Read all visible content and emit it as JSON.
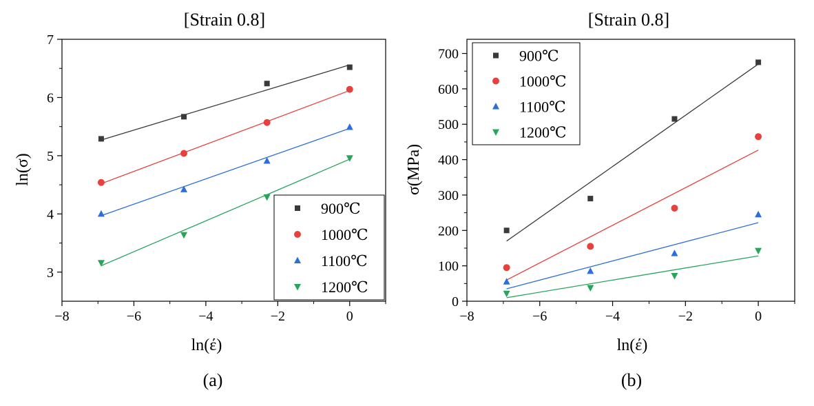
{
  "chart_data": [
    {
      "id": "a",
      "type": "scatter",
      "title": "[Strain 0.8]",
      "caption": "(a)",
      "xlabel": "ln(έ)",
      "ylabel": "ln(σ)",
      "xlim": [
        -8,
        1
      ],
      "ylim": [
        2.5,
        7
      ],
      "xticks": [
        -8,
        -6,
        -4,
        -2,
        0
      ],
      "yticks": [
        3,
        4,
        5,
        6,
        7
      ],
      "xtick_labels": [
        "−8",
        "−6",
        "−4",
        "−2",
        "0"
      ],
      "ytick_labels": [
        "3",
        "4",
        "5",
        "6",
        "7"
      ],
      "legend_position": "bottom-right",
      "x": [
        -6.91,
        -4.61,
        -2.3,
        0
      ],
      "series": [
        {
          "name": "900℃",
          "color": "#3a3a3a",
          "marker": "square",
          "values": [
            5.29,
            5.67,
            6.24,
            6.52
          ],
          "fit": [
            5.27,
            6.56
          ]
        },
        {
          "name": "1000℃",
          "color": "#e8403c",
          "marker": "circle",
          "values": [
            4.54,
            5.04,
            5.57,
            6.14
          ],
          "fit": [
            4.52,
            6.12
          ]
        },
        {
          "name": "1100℃",
          "color": "#2b6fdc",
          "marker": "triangle-up",
          "values": [
            4.0,
            4.42,
            4.91,
            5.49
          ],
          "fit": [
            3.97,
            5.47
          ]
        },
        {
          "name": "1200℃",
          "color": "#27a65a",
          "marker": "triangle-down",
          "values": [
            3.16,
            3.64,
            4.29,
            4.96
          ],
          "fit": [
            3.11,
            4.94
          ]
        }
      ]
    },
    {
      "id": "b",
      "type": "scatter",
      "title": "[Strain 0.8]",
      "caption": "(b)",
      "xlabel": "ln(έ)",
      "ylabel": "σ(MPa)",
      "xlim": [
        -8,
        1
      ],
      "ylim": [
        0,
        740
      ],
      "xticks": [
        -8,
        -6,
        -4,
        -2,
        0
      ],
      "yticks": [
        0,
        100,
        200,
        300,
        400,
        500,
        600,
        700
      ],
      "xtick_labels": [
        "−8",
        "−6",
        "−4",
        "−2",
        "0"
      ],
      "ytick_labels": [
        "0",
        "100",
        "200",
        "300",
        "400",
        "500",
        "600",
        "700"
      ],
      "legend_position": "top-left",
      "x": [
        -6.91,
        -4.61,
        -2.3,
        0
      ],
      "series": [
        {
          "name": "900℃",
          "color": "#3a3a3a",
          "marker": "square",
          "values": [
            200,
            290,
            515,
            675
          ],
          "fit": [
            170,
            670
          ]
        },
        {
          "name": "1000℃",
          "color": "#e8403c",
          "marker": "circle",
          "values": [
            95,
            155,
            263,
            465
          ],
          "fit": [
            60,
            427
          ]
        },
        {
          "name": "1100℃",
          "color": "#2b6fdc",
          "marker": "triangle-up",
          "values": [
            55,
            85,
            135,
            245
          ],
          "fit": [
            35,
            222
          ]
        },
        {
          "name": "1200℃",
          "color": "#27a65a",
          "marker": "triangle-down",
          "values": [
            22,
            38,
            72,
            143
          ],
          "fit": [
            10,
            128
          ]
        }
      ]
    }
  ]
}
